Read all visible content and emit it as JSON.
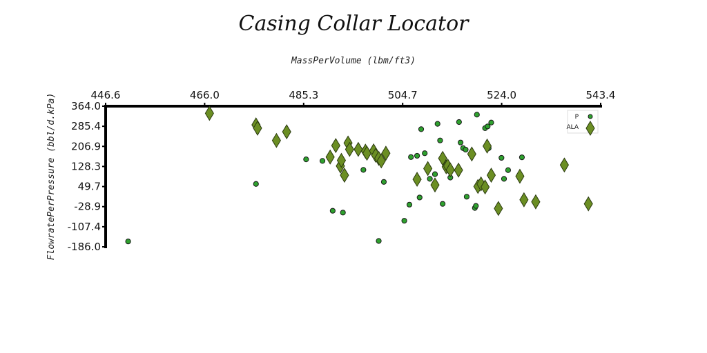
{
  "chart_data": {
    "type": "scatter",
    "title": "Casing Collar Locator",
    "xlabel": "MassPerVolume (lbm/ft3)",
    "ylabel": "FlowratePerPressure (bbl/d.kPa)",
    "xlim": [
      446.6,
      543.4
    ],
    "ylim": [
      -186.0,
      364.0
    ],
    "x_ticks": [
      "446.6",
      "466.0",
      "485.3",
      "504.7",
      "524.0",
      "543.4"
    ],
    "y_ticks": [
      "364.0",
      "285.4",
      "206.9",
      "128.3",
      "49.7",
      "-28.9",
      "-107.4",
      "-186.0"
    ],
    "legend_position": "top-right",
    "series": [
      {
        "name": "P",
        "marker": "circle",
        "color": "#2ea12e",
        "points": [
          [
            451.0,
            -165.0
          ],
          [
            476.0,
            60.0
          ],
          [
            485.8,
            156.0
          ],
          [
            489.0,
            150.0
          ],
          [
            491.0,
            -45.0
          ],
          [
            493.0,
            -52.0
          ],
          [
            497.0,
            115.0
          ],
          [
            500.0,
            -163.0
          ],
          [
            501.0,
            68.0
          ],
          [
            505.0,
            -84.0
          ],
          [
            506.0,
            -21.0
          ],
          [
            506.3,
            165.0
          ],
          [
            507.5,
            170.0
          ],
          [
            508.0,
            7.0
          ],
          [
            508.3,
            274.0
          ],
          [
            509.0,
            180.0
          ],
          [
            510.0,
            80.0
          ],
          [
            511.0,
            98.0
          ],
          [
            511.5,
            295.0
          ],
          [
            512.0,
            230.0
          ],
          [
            512.5,
            -18.0
          ],
          [
            514.0,
            85.0
          ],
          [
            515.7,
            302.0
          ],
          [
            516.0,
            222.0
          ],
          [
            516.5,
            200.0
          ],
          [
            517.0,
            194.0
          ],
          [
            517.2,
            10.0
          ],
          [
            518.8,
            -34.0
          ],
          [
            519.0,
            -26.0
          ],
          [
            519.2,
            331.0
          ],
          [
            520.8,
            278.0
          ],
          [
            521.3,
            285.0
          ],
          [
            521.5,
            200.0
          ],
          [
            522.0,
            300.0
          ],
          [
            524.0,
            162.0
          ],
          [
            524.5,
            80.0
          ],
          [
            525.3,
            114.0
          ],
          [
            528.0,
            164.0
          ]
        ]
      },
      {
        "name": "ALA",
        "marker": "diamond",
        "color": "#6b8e23",
        "points": [
          [
            466.9,
            336.0
          ],
          [
            476.0,
            291.0
          ],
          [
            476.3,
            278.0
          ],
          [
            480.0,
            230.0
          ],
          [
            482.0,
            264.0
          ],
          [
            490.5,
            165.0
          ],
          [
            491.6,
            210.0
          ],
          [
            492.5,
            130.0
          ],
          [
            492.7,
            152.0
          ],
          [
            493.3,
            94.0
          ],
          [
            494.0,
            220.0
          ],
          [
            494.3,
            195.0
          ],
          [
            496.0,
            195.0
          ],
          [
            497.4,
            188.0
          ],
          [
            497.7,
            180.0
          ],
          [
            499.0,
            189.0
          ],
          [
            499.4,
            172.0
          ],
          [
            500.0,
            160.0
          ],
          [
            500.5,
            150.0
          ],
          [
            501.4,
            180.0
          ],
          [
            507.5,
            78.0
          ],
          [
            509.6,
            120.0
          ],
          [
            511.0,
            56.0
          ],
          [
            512.5,
            160.0
          ],
          [
            513.2,
            127.0
          ],
          [
            513.5,
            130.0
          ],
          [
            514.0,
            115.0
          ],
          [
            515.6,
            114.0
          ],
          [
            518.2,
            177.0
          ],
          [
            519.4,
            50.0
          ],
          [
            520.0,
            60.0
          ],
          [
            520.8,
            48.0
          ],
          [
            521.2,
            208.0
          ],
          [
            522.0,
            94.0
          ],
          [
            523.4,
            -36.0
          ],
          [
            527.6,
            90.0
          ],
          [
            528.4,
            -2.0
          ],
          [
            530.7,
            -10.0
          ],
          [
            536.3,
            134.0
          ],
          [
            541.0,
            -18.0
          ]
        ]
      }
    ]
  }
}
